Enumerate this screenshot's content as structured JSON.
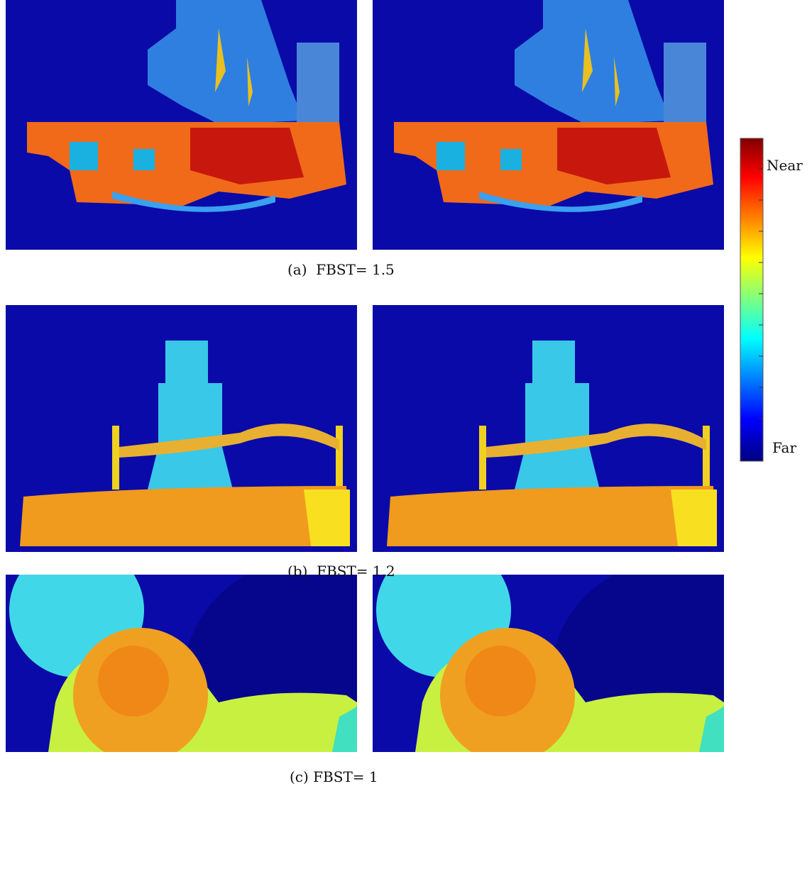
{
  "captions": [
    "(a)  FBST= 1.5",
    "(b)  FBST= 1.2",
    "(c) FBST= 1"
  ],
  "colorbar": {
    "top_label": "Near",
    "bottom_label": "Far"
  }
}
